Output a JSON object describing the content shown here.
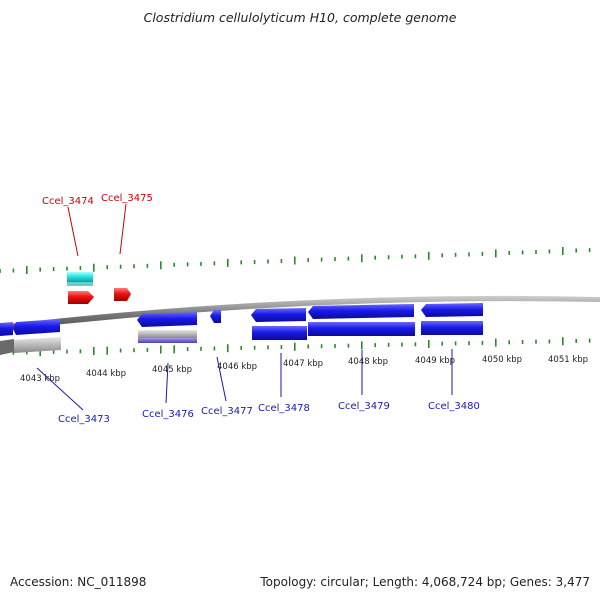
{
  "title": "Clostridium cellulolyticum H10, complete genome",
  "footer": {
    "accession": "Accession: NC_011898",
    "summary": "Topology: circular; Length: 4,068,724 bp; Genes: 3,477"
  },
  "colors": {
    "forward_gene": "#ee1111",
    "forward_rna": "#22dddd",
    "reverse_gene": "#1515e6",
    "reverse_secondary": "#b8b8b8",
    "reverse_purple": "#7a6ad0",
    "forward_label": "#cc0000",
    "reverse_label": "#1a1aaa",
    "tick": "#2a8a2a",
    "backbone": "#808080"
  },
  "ticks": [
    {
      "label": "4043 kbp"
    },
    {
      "label": "4044 kbp"
    },
    {
      "label": "4045 kbp"
    },
    {
      "label": "4046 kbp"
    },
    {
      "label": "4047 kbp"
    },
    {
      "label": "4048 kbp"
    },
    {
      "label": "4049 kbp"
    },
    {
      "label": "4050 kbp"
    },
    {
      "label": "4051 kbp"
    }
  ],
  "forward_labels": [
    {
      "name": "Ccel_3474"
    },
    {
      "name": "Ccel_3475"
    }
  ],
  "reverse_labels": [
    {
      "name": "Ccel_3473"
    },
    {
      "name": "Ccel_3476"
    },
    {
      "name": "Ccel_3477"
    },
    {
      "name": "Ccel_3478"
    },
    {
      "name": "Ccel_3479"
    },
    {
      "name": "Ccel_3480"
    }
  ]
}
